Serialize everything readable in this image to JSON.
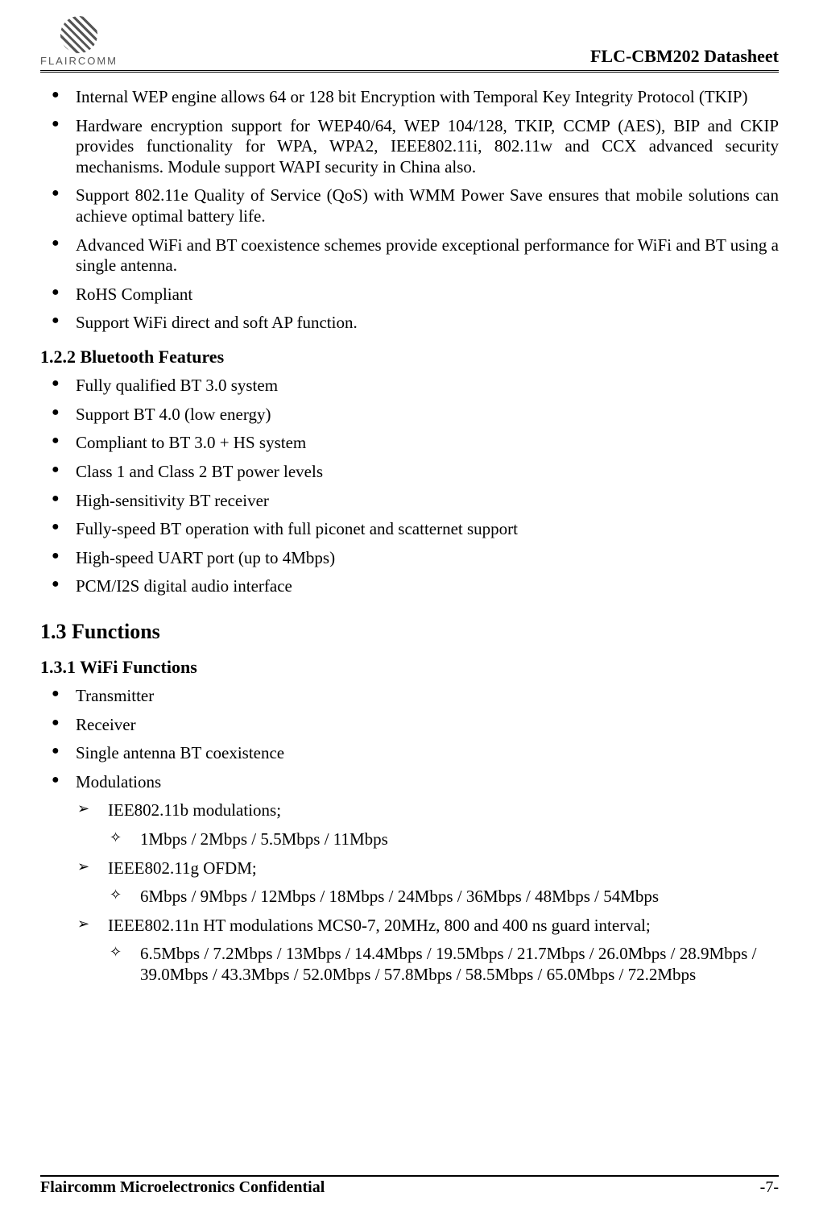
{
  "header": {
    "logo_text": "FLAIRCOMM",
    "title": "FLC-CBM202 Datasheet"
  },
  "wifi_features": [
    "Internal WEP engine allows 64 or 128 bit Encryption with Temporal Key Integrity Protocol (TKIP)",
    "Hardware encryption support for WEP40/64, WEP 104/128, TKIP, CCMP (AES), BIP and CKIP provides functionality for WPA, WPA2, IEEE802.11i, 802.11w and CCX advanced security mechanisms.  Module support WAPI security in China also.",
    "Support 802.11e Quality of Service (QoS) with WMM Power Save ensures that mobile solutions can achieve optimal battery life.",
    "Advanced WiFi and BT coexistence schemes provide exceptional performance for WiFi and BT using a single antenna.",
    "RoHS Compliant",
    "Support WiFi direct and soft AP function."
  ],
  "section_bt": "1.2.2  Bluetooth Features",
  "bt_features": [
    "Fully qualified BT 3.0 system",
    "Support BT 4.0 (low energy)",
    "Compliant to BT 3.0 + HS system",
    "Class 1 and Class 2 BT power levels",
    "High-sensitivity BT receiver",
    "Fully-speed BT operation with full piconet and scatternet support",
    "High-speed UART port (up to 4Mbps)",
    "PCM/I2S digital audio interface"
  ],
  "section_functions": "1.3  Functions",
  "section_wifi_fn": "1.3.1  WiFi Functions",
  "wifi_fn_top": [
    "Transmitter",
    "Receiver",
    "Single antenna BT coexistence",
    "Modulations"
  ],
  "mod": {
    "a_label": "IEE802.11b modulations;",
    "a_rates": "1Mbps / 2Mbps / 5.5Mbps / 11Mbps",
    "b_label": "IEEE802.11g OFDM;",
    "b_rates": "6Mbps / 9Mbps / 12Mbps / 18Mbps / 24Mbps / 36Mbps / 48Mbps / 54Mbps",
    "c_label": "IEEE802.11n HT modulations MCS0-7, 20MHz, 800 and 400 ns guard interval;",
    "c_rates": "6.5Mbps / 7.2Mbps / 13Mbps / 14.4Mbps / 19.5Mbps / 21.7Mbps / 26.0Mbps / 28.9Mbps / 39.0Mbps / 43.3Mbps / 52.0Mbps / 57.8Mbps / 58.5Mbps / 65.0Mbps / 72.2Mbps"
  },
  "footer": {
    "left": "Flaircomm Microelectronics Confidential",
    "right": "-7-"
  }
}
